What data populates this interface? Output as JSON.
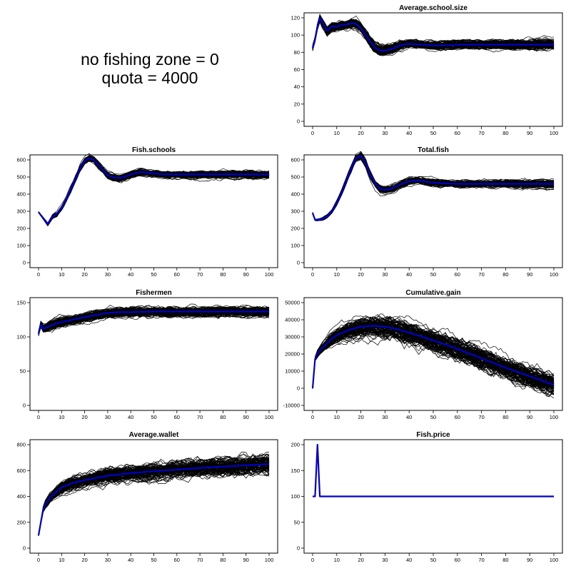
{
  "caption": {
    "line1": "no fishing zone = 0",
    "line2": "quota = 4000"
  },
  "chart_data": [
    {
      "type": "line",
      "title": "Average.school.size",
      "xlim": [
        0,
        100
      ],
      "ylim": [
        0,
        120
      ],
      "xticks": [
        0,
        10,
        20,
        30,
        40,
        50,
        60,
        70,
        80,
        90,
        100
      ],
      "yticks": [
        0,
        20,
        40,
        60,
        80,
        100,
        120
      ],
      "ensemble_runs": 100,
      "ensemble_color": "#000000",
      "mean_color": "#0000cc",
      "mean": {
        "x": [
          0,
          1,
          2,
          3,
          4,
          6,
          8,
          10,
          12,
          14,
          16,
          18,
          20,
          22,
          24,
          26,
          28,
          30,
          33,
          36,
          40,
          45,
          50,
          55,
          60,
          70,
          80,
          90,
          100
        ],
        "y": [
          85,
          95,
          110,
          120,
          115,
          105,
          110,
          110,
          112,
          112,
          114,
          113,
          108,
          100,
          92,
          85,
          82,
          82,
          84,
          88,
          90,
          89,
          88,
          88,
          89,
          89,
          89,
          89,
          89
        ]
      },
      "spread": {
        "x": [
          0,
          4,
          10,
          20,
          25,
          30,
          40,
          60,
          100
        ],
        "y": [
          3,
          4,
          4,
          5,
          5,
          5,
          4,
          4,
          5
        ]
      }
    },
    {
      "type": "line",
      "title": "Fish.schools",
      "xlim": [
        0,
        100
      ],
      "ylim": [
        0,
        600
      ],
      "xticks": [
        0,
        10,
        20,
        30,
        40,
        50,
        60,
        70,
        80,
        90,
        100
      ],
      "yticks": [
        0,
        100,
        200,
        300,
        400,
        500,
        600
      ],
      "ensemble_runs": 100,
      "ensemble_color": "#000000",
      "mean_color": "#0000cc",
      "mean": {
        "x": [
          0,
          2,
          4,
          6,
          8,
          10,
          12,
          14,
          16,
          18,
          20,
          22,
          24,
          26,
          28,
          30,
          32,
          34,
          36,
          38,
          40,
          44,
          48,
          52,
          56,
          60,
          70,
          80,
          90,
          100
        ],
        "y": [
          295,
          260,
          225,
          270,
          285,
          320,
          370,
          430,
          490,
          550,
          595,
          610,
          600,
          570,
          540,
          510,
          500,
          495,
          495,
          505,
          515,
          530,
          525,
          518,
          515,
          515,
          515,
          515,
          515,
          515
        ]
      },
      "spread": {
        "x": [
          0,
          5,
          20,
          30,
          50,
          100
        ],
        "y": [
          3,
          8,
          14,
          16,
          15,
          17
        ]
      }
    },
    {
      "type": "line",
      "title": "Total.fish",
      "xlim": [
        0,
        100
      ],
      "ylim": [
        0,
        600
      ],
      "xticks": [
        0,
        10,
        20,
        30,
        40,
        50,
        60,
        70,
        80,
        90,
        100
      ],
      "yticks": [
        0,
        100,
        200,
        300,
        400,
        500,
        600
      ],
      "ensemble_runs": 100,
      "ensemble_color": "#000000",
      "mean_color": "#0000cc",
      "mean": {
        "x": [
          0,
          1,
          2,
          4,
          6,
          8,
          10,
          12,
          14,
          16,
          18,
          20,
          22,
          24,
          26,
          28,
          30,
          32,
          34,
          36,
          40,
          44,
          48,
          52,
          56,
          60,
          70,
          80,
          90,
          100
        ],
        "y": [
          290,
          250,
          250,
          255,
          270,
          300,
          350,
          410,
          480,
          550,
          610,
          625,
          580,
          510,
          460,
          430,
          425,
          430,
          440,
          455,
          475,
          480,
          470,
          465,
          462,
          460,
          460,
          460,
          460,
          460
        ]
      },
      "spread": {
        "x": [
          0,
          5,
          20,
          30,
          50,
          100
        ],
        "y": [
          3,
          6,
          16,
          15,
          15,
          18
        ]
      }
    },
    {
      "type": "line",
      "title": "Fishermen",
      "xlim": [
        0,
        100
      ],
      "ylim": [
        0,
        150
      ],
      "xticks": [
        0,
        10,
        20,
        30,
        40,
        50,
        60,
        70,
        80,
        90,
        100
      ],
      "yticks": [
        0,
        50,
        100,
        150
      ],
      "ensemble_runs": 100,
      "ensemble_color": "#000000",
      "mean_color": "#0000cc",
      "mean": {
        "x": [
          0,
          1,
          2,
          3,
          5,
          8,
          12,
          16,
          20,
          25,
          30,
          35,
          40,
          50,
          60,
          70,
          80,
          90,
          100
        ],
        "y": [
          105,
          118,
          112,
          113,
          116,
          120,
          123,
          126,
          129,
          132,
          135,
          136,
          136,
          137,
          137,
          137,
          137,
          137,
          137
        ]
      },
      "spread": {
        "x": [
          0,
          2,
          10,
          30,
          100
        ],
        "y": [
          3,
          6,
          6,
          6,
          6
        ]
      }
    },
    {
      "type": "line",
      "title": "Cumulative.gain",
      "xlim": [
        0,
        100
      ],
      "ylim": [
        -10000,
        50000
      ],
      "xticks": [
        0,
        10,
        20,
        30,
        40,
        50,
        60,
        70,
        80,
        90,
        100
      ],
      "yticks": [
        -10000,
        0,
        10000,
        20000,
        30000,
        40000,
        50000
      ],
      "ensemble_runs": 100,
      "ensemble_color": "#000000",
      "mean_color": "#0000cc",
      "mean": {
        "x": [
          0,
          1,
          2,
          3,
          5,
          8,
          10,
          15,
          20,
          25,
          30,
          35,
          40,
          50,
          60,
          70,
          80,
          90,
          100
        ],
        "y": [
          0,
          17000,
          20000,
          22000,
          25000,
          29000,
          31000,
          34000,
          36000,
          36500,
          36000,
          34500,
          32500,
          28000,
          23000,
          17500,
          12000,
          7000,
          2000
        ]
      },
      "spread": {
        "x": [
          0,
          2,
          10,
          20,
          30,
          50,
          100
        ],
        "y": [
          200,
          1500,
          3500,
          4500,
          5000,
          5000,
          5000
        ]
      }
    },
    {
      "type": "line",
      "title": "Average.wallet",
      "xlim": [
        0,
        100
      ],
      "ylim": [
        0,
        800
      ],
      "xticks": [
        0,
        10,
        20,
        30,
        40,
        50,
        60,
        70,
        80,
        90,
        100
      ],
      "yticks": [
        0,
        200,
        400,
        600,
        800
      ],
      "ensemble_runs": 100,
      "ensemble_color": "#000000",
      "mean_color": "#0000cc",
      "mean": {
        "x": [
          0,
          1,
          2,
          3,
          5,
          8,
          10,
          15,
          20,
          30,
          40,
          50,
          60,
          70,
          80,
          90,
          100
        ],
        "y": [
          100,
          200,
          300,
          340,
          390,
          440,
          470,
          505,
          525,
          560,
          580,
          595,
          607,
          620,
          630,
          640,
          650
        ]
      },
      "spread": {
        "x": [
          0,
          3,
          10,
          30,
          100
        ],
        "y": [
          5,
          25,
          35,
          45,
          55
        ]
      }
    },
    {
      "type": "line",
      "title": "Fish.price",
      "xlim": [
        0,
        100
      ],
      "ylim": [
        0,
        200
      ],
      "xticks": [
        0,
        10,
        20,
        30,
        40,
        50,
        60,
        70,
        80,
        90,
        100
      ],
      "yticks": [
        0,
        50,
        100,
        150,
        200
      ],
      "ensemble_runs": 0,
      "ensemble_color": "#000000",
      "mean_color": "#0000cc",
      "mean": {
        "x": [
          0,
          1,
          2,
          3,
          100
        ],
        "y": [
          100,
          100,
          200,
          100,
          100
        ]
      },
      "spread": {
        "x": [
          0,
          100
        ],
        "y": [
          0,
          0
        ]
      }
    }
  ]
}
